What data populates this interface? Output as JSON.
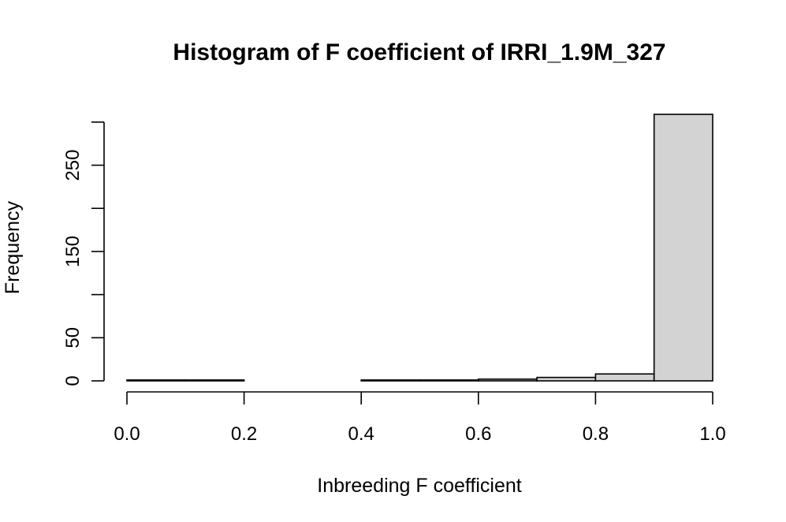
{
  "chart_data": {
    "type": "bar",
    "title": "Histogram of F coefficient of IRRI_1.9M_327",
    "xlabel": "Inbreeding F coefficient",
    "ylabel": "Frequency",
    "bins": [
      {
        "start": 0.0,
        "end": 0.1,
        "count": 1
      },
      {
        "start": 0.1,
        "end": 0.2,
        "count": 1
      },
      {
        "start": 0.2,
        "end": 0.3,
        "count": 0
      },
      {
        "start": 0.3,
        "end": 0.4,
        "count": 0
      },
      {
        "start": 0.4,
        "end": 0.5,
        "count": 1
      },
      {
        "start": 0.5,
        "end": 0.6,
        "count": 1
      },
      {
        "start": 0.6,
        "end": 0.7,
        "count": 2
      },
      {
        "start": 0.7,
        "end": 0.8,
        "count": 4
      },
      {
        "start": 0.8,
        "end": 0.9,
        "count": 8
      },
      {
        "start": 0.9,
        "end": 1.0,
        "count": 309
      }
    ],
    "xlim": [
      0,
      1
    ],
    "ylim": [
      0,
      309
    ],
    "x_ticks": [
      0.0,
      0.2,
      0.4,
      0.6,
      0.8,
      1.0
    ],
    "x_tick_labels": [
      "0.0",
      "0.2",
      "0.4",
      "0.6",
      "0.8",
      "1.0"
    ],
    "y_ticks": [
      0,
      50,
      100,
      150,
      200,
      250,
      300
    ],
    "y_tick_labels": [
      "0",
      "50",
      "",
      "150",
      "",
      "250",
      ""
    ],
    "bar_color": "#d3d3d3",
    "grid": false,
    "legend": "none"
  }
}
